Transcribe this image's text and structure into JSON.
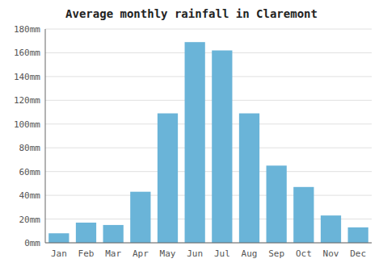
{
  "chart_data": {
    "type": "bar",
    "title": "Average monthly rainfall in Claremont",
    "categories": [
      "Jan",
      "Feb",
      "Mar",
      "Apr",
      "May",
      "Jun",
      "Jul",
      "Aug",
      "Sep",
      "Oct",
      "Nov",
      "Dec"
    ],
    "values": [
      8,
      17,
      15,
      43,
      109,
      169,
      162,
      109,
      65,
      47,
      23,
      13
    ],
    "color": "#6ab4d8",
    "ylim": [
      0,
      180
    ],
    "yticks": [
      {
        "value": 0,
        "label": "0mm"
      },
      {
        "value": 20,
        "label": "20mm"
      },
      {
        "value": 40,
        "label": "40mm"
      },
      {
        "value": 60,
        "label": "60mm"
      },
      {
        "value": 80,
        "label": "80mm"
      },
      {
        "value": 100,
        "label": "100mm"
      },
      {
        "value": 120,
        "label": "120mm"
      },
      {
        "value": 140,
        "label": "140mm"
      },
      {
        "value": 160,
        "label": "160mm"
      },
      {
        "value": 180,
        "label": "180mm"
      }
    ],
    "grid": true
  }
}
